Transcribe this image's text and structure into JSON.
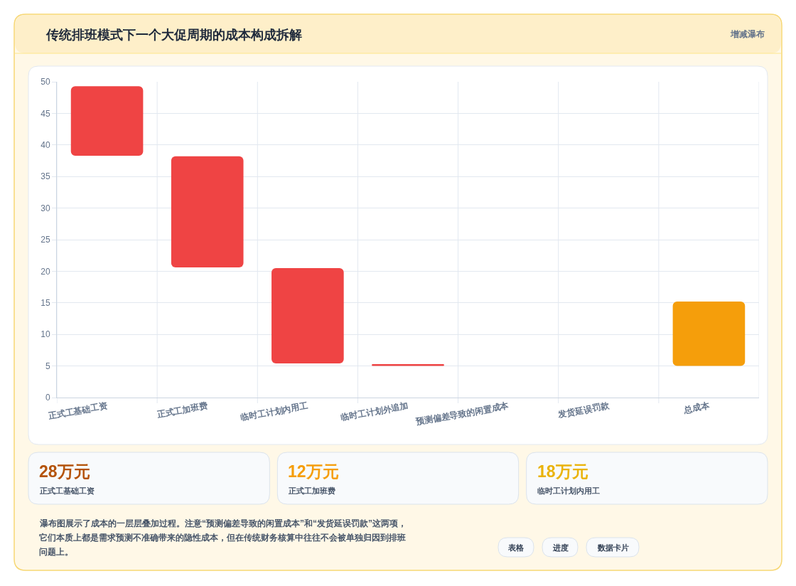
{
  "chart_data": [
    {
      "type": "bar",
      "title": "传统排班模式下一个大促周期的成本构成拆解",
      "subtitle": "增减瀑布",
      "categories": [
        "正式工基础工资",
        "正式工加班费",
        "临时工计划内用工",
        "临时工计划外追加",
        "预测偏差导致的闲置成本",
        "发货延误罚款",
        "总成本"
      ],
      "base": [
        38.3,
        20.6,
        5.4,
        5.0,
        null,
        null,
        5.0
      ],
      "values": [
        11.0,
        17.6,
        15.1,
        0.3,
        null,
        null,
        10.2
      ],
      "colors": [
        "#ef4444",
        "#ef4444",
        "#ef4444",
        "#ef4444",
        "#ef4444",
        "#ef4444",
        "#f59e0b"
      ],
      "ylim": [
        0,
        50
      ],
      "yticks": [
        0,
        5,
        10,
        15,
        20,
        25,
        30,
        35,
        40,
        45,
        50
      ],
      "grid": true
    },
    {
      "type": "other",
      "categories": [
        "正式工基础工资",
        "正式工加班费",
        "临时工计划内用工"
      ],
      "value_labels": [
        "28万元",
        "12万元",
        "18万元"
      ],
      "annotations": [
        "瀑布图展示了成本的一层层叠加过程。注意“预测偏差导致的闲置成本”和“发货延误罚款”这两项，它们本质上都是需求预测不准确带来的隐性成本，但在传统财务核算中往往不会被单独归因到排班问题上。",
        "表格",
        "进度",
        "数据卡片"
      ]
    }
  ]
}
